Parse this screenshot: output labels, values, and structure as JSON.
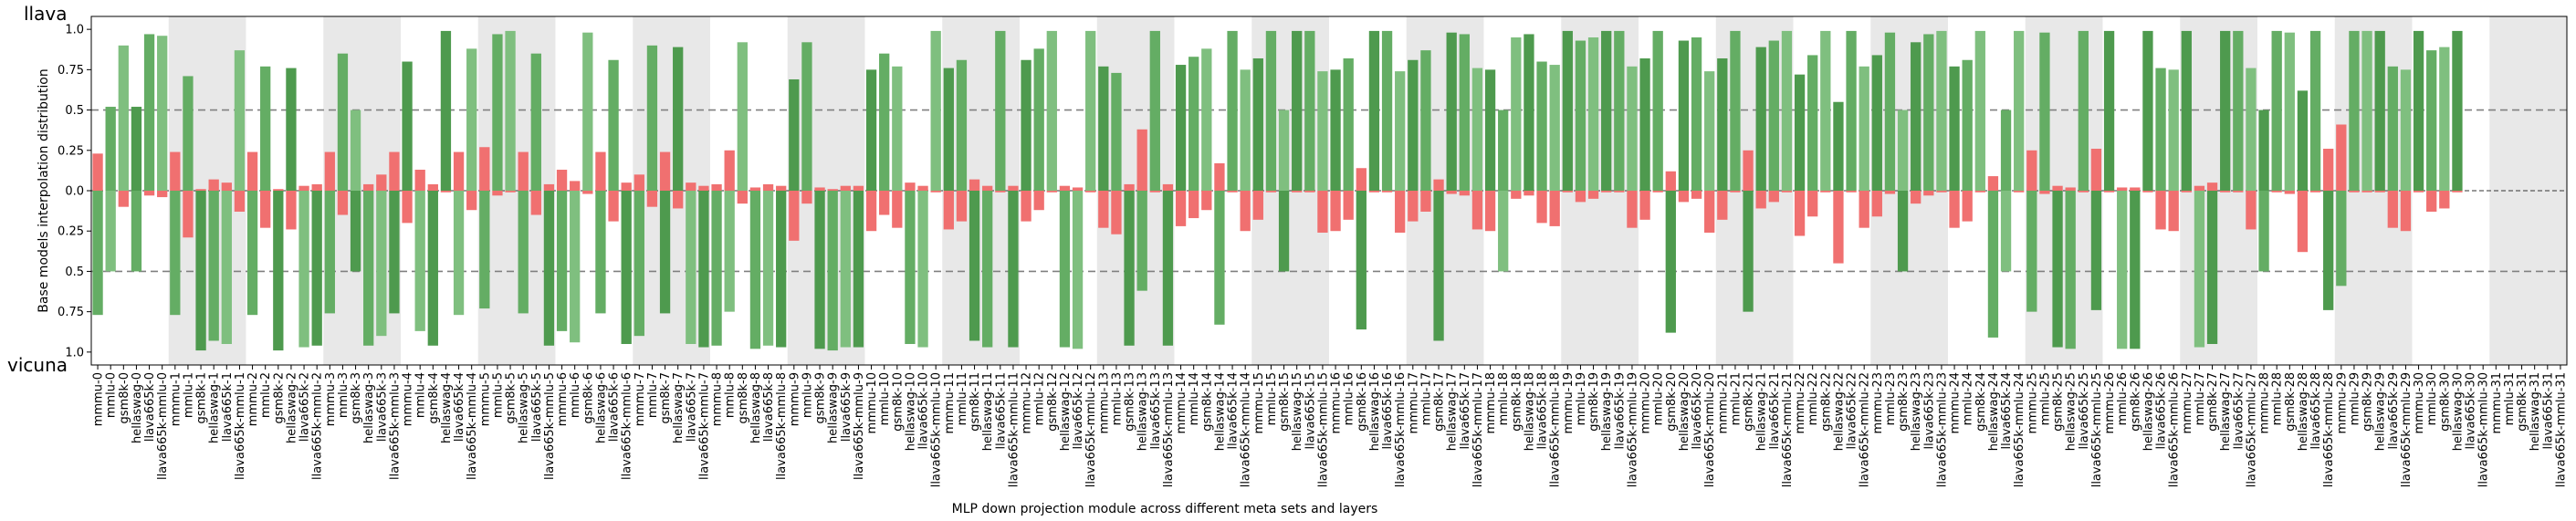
{
  "chart_data": {
    "type": "bar",
    "title": "",
    "top_label": "llava",
    "bottom_label": "vicuna",
    "xlabel": "MLP down projection module across different meta sets and layers",
    "ylabel": "Base models interpolation distribution",
    "ylim": [
      -1.08,
      1.08
    ],
    "yticks": [
      {
        "value": 1.0,
        "label": "1.0"
      },
      {
        "value": 0.75,
        "label": "0.75"
      },
      {
        "value": 0.5,
        "label": "0.5"
      },
      {
        "value": 0.25,
        "label": "0.25"
      },
      {
        "value": 0.0,
        "label": "0.0"
      },
      {
        "value": -0.25,
        "label": "0.25"
      },
      {
        "value": -0.5,
        "label": "0.5"
      },
      {
        "value": -0.75,
        "label": "0.75"
      },
      {
        "value": -1.0,
        "label": "1.0"
      }
    ],
    "reference_lines": [
      0.5,
      -0.5
    ],
    "meta_sets": [
      "mmmu",
      "mmlu",
      "gsm8k",
      "hellaswag",
      "llava665k",
      "llava665k-mmlu"
    ],
    "layers": 32,
    "colors": {
      "green": "#64ad64",
      "dark_green": "#4e9a4e",
      "light_green": "#7fbf7f",
      "red": "#f07070",
      "band": "#e8e8e8",
      "refline": "#808080"
    },
    "series_note_llava_positive": true,
    "series": [
      {
        "name": "llava",
        "values": [
          0.23,
          0.52,
          0.9,
          0.52,
          0.97,
          0.96,
          0.24,
          0.71,
          0.01,
          0.07,
          0.05,
          0.87,
          0.24,
          0.77,
          0.01,
          0.76,
          0.03,
          0.04,
          0.24,
          0.85,
          0.5,
          0.04,
          0.1,
          0.24,
          0.8,
          0.13,
          0.04,
          0.99,
          0.24,
          0.88,
          0.27,
          0.97,
          0.99,
          0.24,
          0.85,
          0.04,
          0.13,
          0.06,
          0.98,
          0.24,
          0.81,
          0.05,
          0.1,
          0.9,
          0.24,
          0.89,
          0.05,
          0.03,
          0.04,
          0.25,
          0.92,
          0.02,
          0.04,
          0.03,
          0.69,
          0.92,
          0.02,
          0.01,
          0.03,
          0.03,
          0.75,
          0.85,
          0.77,
          0.05,
          0.03,
          0.99,
          0.76,
          0.81,
          0.07,
          0.03,
          0.99,
          0.03,
          0.81,
          0.88,
          0.99,
          0.03,
          0.02,
          0.99,
          0.77,
          0.73,
          0.04,
          0.38,
          0.99,
          0.04,
          0.78,
          0.83,
          0.88,
          0.17,
          0.99,
          0.75,
          0.82,
          0.99,
          0.5,
          0.99,
          0.99,
          0.74,
          0.75,
          0.82,
          0.14,
          0.99,
          0.99,
          0.74,
          0.81,
          0.87,
          0.07,
          0.98,
          0.97,
          0.76,
          0.75,
          0.5,
          0.95,
          0.97,
          0.8,
          0.78,
          0.99,
          0.93,
          0.95,
          0.99,
          0.99,
          0.77,
          0.82,
          0.99,
          0.12,
          0.93,
          0.95,
          0.74,
          0.82,
          0.99,
          0.25,
          0.89,
          0.93,
          0.99,
          0.72,
          0.84,
          0.99,
          0.55,
          0.99,
          0.77,
          0.84,
          0.98,
          0.5,
          0.92,
          0.97,
          0.99,
          0.77,
          0.81,
          0.99,
          0.09,
          0.5,
          0.99,
          0.25,
          0.98,
          0.03,
          0.02,
          0.99,
          0.26,
          0.99,
          0.02,
          0.02,
          0.99,
          0.76,
          0.75,
          0.99,
          0.03,
          0.05,
          0.99,
          0.99,
          0.76,
          0.5,
          0.99,
          0.98,
          0.62,
          0.99,
          0.26,
          0.41,
          0.99,
          0.99,
          0.99,
          0.77,
          0.75,
          0.99,
          0.87,
          0.89,
          0.99
        ]
      },
      {
        "name": "vicuna",
        "values": [
          -0.77,
          -0.5,
          -0.1,
          -0.5,
          -0.03,
          -0.04,
          -0.77,
          -0.29,
          -0.99,
          -0.93,
          -0.95,
          -0.13,
          -0.77,
          -0.23,
          -0.99,
          -0.24,
          -0.97,
          -0.96,
          -0.76,
          -0.15,
          -0.5,
          -0.96,
          -0.9,
          -0.76,
          -0.2,
          -0.87,
          -0.96,
          -0.01,
          -0.77,
          -0.12,
          -0.73,
          -0.03,
          -0.01,
          -0.76,
          -0.15,
          -0.96,
          -0.87,
          -0.94,
          -0.02,
          -0.76,
          -0.19,
          -0.95,
          -0.9,
          -0.1,
          -0.76,
          -0.11,
          -0.95,
          -0.97,
          -0.96,
          -0.75,
          -0.08,
          -0.98,
          -0.96,
          -0.97,
          -0.31,
          -0.08,
          -0.98,
          -0.99,
          -0.97,
          -0.97,
          -0.25,
          -0.15,
          -0.23,
          -0.95,
          -0.97,
          -0.01,
          -0.24,
          -0.19,
          -0.93,
          -0.97,
          -0.01,
          -0.97,
          -0.19,
          -0.12,
          -0.01,
          -0.97,
          -0.98,
          -0.01,
          -0.23,
          -0.27,
          -0.96,
          -0.62,
          -0.01,
          -0.96,
          -0.22,
          -0.17,
          -0.12,
          -0.83,
          -0.01,
          -0.25,
          -0.18,
          -0.01,
          -0.5,
          -0.01,
          -0.01,
          -0.26,
          -0.25,
          -0.18,
          -0.86,
          -0.01,
          -0.01,
          -0.26,
          -0.19,
          -0.13,
          -0.93,
          -0.02,
          -0.03,
          -0.24,
          -0.25,
          -0.5,
          -0.05,
          -0.03,
          -0.2,
          -0.22,
          -0.01,
          -0.07,
          -0.05,
          -0.01,
          -0.01,
          -0.23,
          -0.18,
          -0.01,
          -0.88,
          -0.07,
          -0.05,
          -0.26,
          -0.18,
          -0.01,
          -0.75,
          -0.11,
          -0.07,
          -0.01,
          -0.28,
          -0.16,
          -0.01,
          -0.45,
          -0.01,
          -0.23,
          -0.16,
          -0.02,
          -0.5,
          -0.08,
          -0.03,
          -0.01,
          -0.23,
          -0.19,
          -0.01,
          -0.91,
          -0.5,
          -0.01,
          -0.75,
          -0.02,
          -0.97,
          -0.98,
          -0.01,
          -0.74,
          -0.01,
          -0.98,
          -0.98,
          -0.01,
          -0.24,
          -0.25,
          -0.01,
          -0.97,
          -0.95,
          -0.01,
          -0.01,
          -0.24,
          -0.5,
          -0.01,
          -0.02,
          -0.38,
          -0.01,
          -0.74,
          -0.59,
          -0.01,
          -0.01,
          -0.01,
          -0.23,
          -0.25,
          -0.01,
          -0.13,
          -0.11,
          -0.01
        ]
      }
    ]
  }
}
